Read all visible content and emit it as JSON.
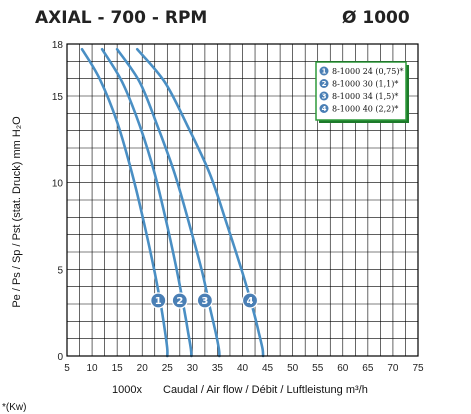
{
  "header": {
    "title": "AXIAL - 700 - RPM",
    "diameter": "Ø 1000"
  },
  "chart_data": {
    "type": "line",
    "xlabel_prefix": "1000x",
    "xlabel": "Caudal / Air flow / Débit / Luftleistung m³/h",
    "ylabel": "Pe / Ps / Sp / Pst (stat. Druck) mm H₂O",
    "xlim": [
      5,
      75
    ],
    "ylim": [
      0,
      18
    ],
    "xticks": [
      5,
      10,
      15,
      20,
      25,
      30,
      35,
      40,
      45,
      50,
      55,
      60,
      65,
      70,
      75
    ],
    "yticks": [
      0,
      5,
      10,
      15,
      18
    ],
    "grid": true,
    "legend_position": "top-right",
    "series": [
      {
        "name": "8-1000 24 (0,75)*",
        "badge": "1",
        "color": "#4a8fc4",
        "x": [
          8.0,
          11.5,
          15.0,
          18.0,
          20.5,
          22.5,
          23.8,
          24.6,
          25.0,
          25.0
        ],
        "y": [
          17.7,
          16.0,
          13.5,
          10.5,
          7.5,
          4.8,
          2.8,
          1.3,
          0.4,
          0.0
        ]
      },
      {
        "name": "8-1000 30 (1,1)*",
        "badge": "2",
        "color": "#4a8fc4",
        "x": [
          12.0,
          16.0,
          19.5,
          22.5,
          25.0,
          27.0,
          28.3,
          29.2,
          29.7,
          29.8
        ],
        "y": [
          17.7,
          15.8,
          13.3,
          10.5,
          7.5,
          4.8,
          2.8,
          1.3,
          0.4,
          0.0
        ]
      },
      {
        "name": "8-1000 34 (1,5)*",
        "badge": "3",
        "color": "#4a8fc4",
        "x": [
          15.0,
          19.5,
          23.0,
          26.5,
          29.5,
          32.0,
          33.5,
          34.7,
          35.3,
          35.4
        ],
        "y": [
          17.7,
          15.8,
          13.3,
          10.5,
          7.5,
          4.8,
          2.8,
          1.3,
          0.4,
          0.0
        ]
      },
      {
        "name": "8-1000 40 (2,2)*",
        "badge": "4",
        "color": "#4a8fc4",
        "x": [
          19.0,
          24.5,
          29.0,
          33.5,
          37.0,
          40.0,
          42.0,
          43.3,
          44.0,
          44.1
        ],
        "y": [
          17.7,
          15.8,
          13.3,
          10.5,
          7.5,
          4.8,
          2.8,
          1.3,
          0.4,
          0.0
        ]
      }
    ],
    "badge_points": [
      {
        "label": "1",
        "x": 23.2,
        "y": 3.2
      },
      {
        "label": "2",
        "x": 27.5,
        "y": 3.2
      },
      {
        "label": "3",
        "x": 32.5,
        "y": 3.2
      },
      {
        "label": "4",
        "x": 41.5,
        "y": 3.2
      }
    ]
  },
  "footnote": "*(Kw)",
  "colors": {
    "curve": "#4a8fc4",
    "badge": "#4a7fb5",
    "legend_border": "#2e9a3a",
    "legend_shadow": "#1d7a2a",
    "grid": "#000000"
  }
}
